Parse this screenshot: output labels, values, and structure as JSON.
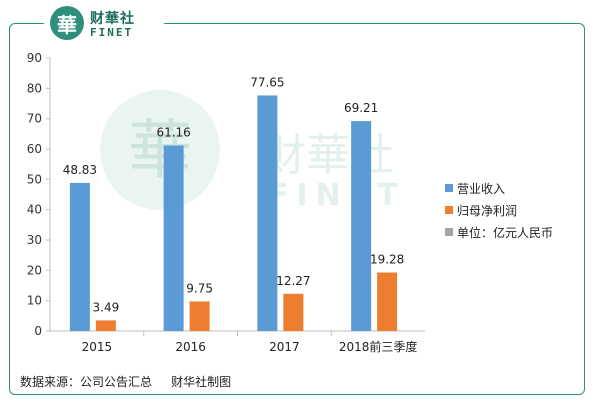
{
  "logo": {
    "mark": "華",
    "cn": "财華社",
    "en": "FINET"
  },
  "watermark": {
    "mark": "華",
    "cn": "財華社",
    "en": "FINET"
  },
  "source_note": "数据来源：公司公告汇总     财华社制图",
  "colors": {
    "revenue": "#5b9bd5",
    "profit": "#ed7d31",
    "unit": "#a5a5a5",
    "frame": "#2f8f7a"
  },
  "chart_data": {
    "type": "bar",
    "categories": [
      "2015",
      "2016",
      "2017",
      "2018前三季度"
    ],
    "series": [
      {
        "name": "营业收入",
        "values": [
          48.83,
          61.16,
          77.65,
          69.21
        ],
        "labels": [
          "48.83",
          "61.16",
          "77.65",
          "69.21"
        ]
      },
      {
        "name": "归母净利润",
        "values": [
          3.49,
          9.75,
          12.27,
          19.28
        ],
        "labels": [
          "3.49",
          "9.75",
          "12.27",
          "19.28"
        ]
      }
    ],
    "legend": [
      "营业收入",
      "归母净利润",
      "单位：亿元人民币"
    ],
    "ylim": [
      0,
      90
    ],
    "yticks": [
      0,
      10,
      20,
      30,
      40,
      50,
      60,
      70,
      80,
      90
    ],
    "grid": false,
    "legend_position": "right"
  }
}
